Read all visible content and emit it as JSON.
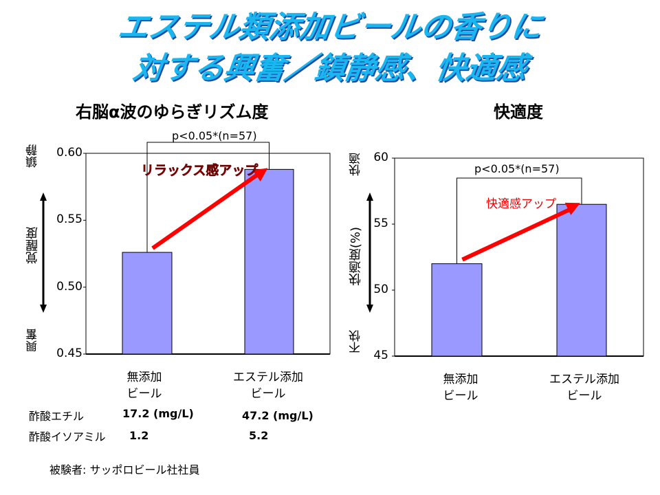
{
  "title": {
    "line1": "エステル類添加ビールの香りに",
    "line2": "対する興奮／鎮静感、快適感"
  },
  "chart_data": [
    {
      "type": "bar",
      "title": "右脳α波のゆらぎリズム度",
      "categories": [
        "無添加 ビール",
        "エステル添加 ビール"
      ],
      "category_lines": [
        [
          "無添加",
          "ビール"
        ],
        [
          "エステル添加",
          "ビール"
        ]
      ],
      "values": [
        0.526,
        0.588
      ],
      "ylim": [
        0.45,
        0.6
      ],
      "yticks": [
        "0.45",
        "0.50",
        "0.55",
        "0.60"
      ],
      "ylabel": "覚醒度",
      "ylabel_top": "鎮静",
      "ylabel_bottom": "興奮",
      "significance": "p<0.05*(n=57)",
      "annotation": "リラックス感アップ",
      "bar_color": "#9999ff",
      "arrow_color": "#ff0000"
    },
    {
      "type": "bar",
      "title": "快適度",
      "categories": [
        "無添加 ビール",
        "エステル添加 ビール"
      ],
      "category_lines": [
        [
          "無添加",
          "ビール"
        ],
        [
          "エステル添加",
          "ビール"
        ]
      ],
      "values": [
        52.0,
        56.5
      ],
      "ylim": [
        45,
        60
      ],
      "yticks": [
        "45",
        "50",
        "55",
        "60"
      ],
      "ylabel": "快適度(%)",
      "ylabel_top": "快適",
      "ylabel_bottom": "不快",
      "significance": "p<0.05*(n=57)",
      "annotation": "快適感アップ",
      "bar_color": "#9999ff",
      "arrow_color": "#ff0000"
    }
  ],
  "table": [
    {
      "label": "酢酸エチル",
      "values": [
        "17.2 (mg/L)",
        "47.2 (mg/L)"
      ]
    },
    {
      "label": "酢酸イソアミル",
      "values": [
        "1.2",
        "5.2"
      ]
    }
  ],
  "footnote": "被験者: サッポロビール社社員"
}
